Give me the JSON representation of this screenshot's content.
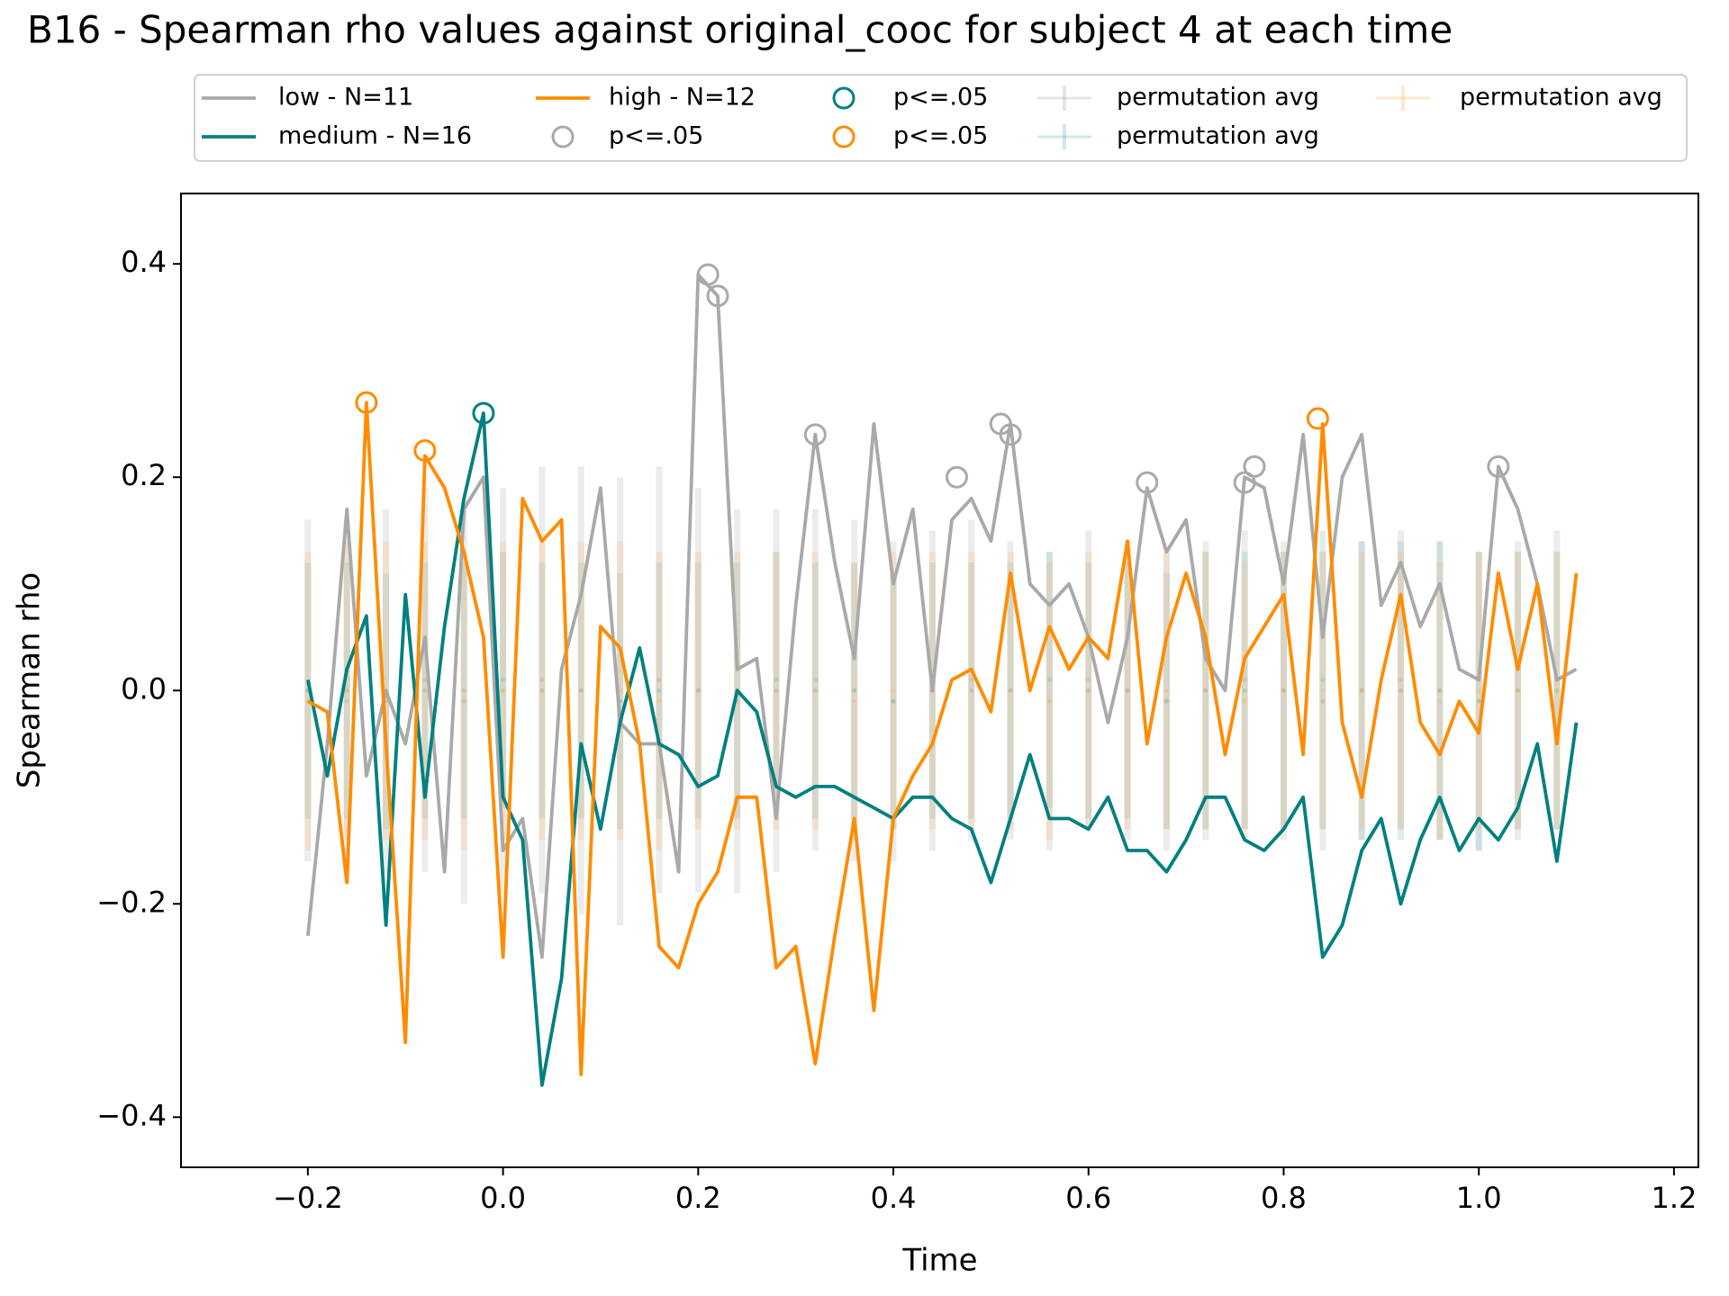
{
  "chart_data": {
    "type": "line",
    "title": "B16 - Spearman rho values against original_cooc for subject 4 at each time",
    "x_label": "Time",
    "y_label": "Spearman rho",
    "xlim": [
      -0.33,
      1.225
    ],
    "ylim": [
      -0.447,
      0.466
    ],
    "xticks": [
      {
        "value": -0.2,
        "label": "−0.2"
      },
      {
        "value": 0.0,
        "label": "0.0"
      },
      {
        "value": 0.2,
        "label": "0.2"
      },
      {
        "value": 0.4,
        "label": "0.4"
      },
      {
        "value": 0.6,
        "label": "0.6"
      },
      {
        "value": 0.8,
        "label": "0.8"
      },
      {
        "value": 1.0,
        "label": "1.0"
      },
      {
        "value": 1.2,
        "label": "1.2"
      }
    ],
    "yticks": [
      {
        "value": -0.4,
        "label": "−0.4"
      },
      {
        "value": -0.2,
        "label": "−0.2"
      },
      {
        "value": 0.0,
        "label": "0.0"
      },
      {
        "value": 0.2,
        "label": "0.2"
      },
      {
        "value": 0.4,
        "label": "0.4"
      }
    ],
    "x": [
      -0.2,
      -0.18,
      -0.16,
      -0.14,
      -0.12,
      -0.1,
      -0.08,
      -0.06,
      -0.04,
      -0.02,
      0,
      0.02,
      0.04,
      0.06,
      0.08,
      0.1,
      0.12,
      0.14,
      0.16,
      0.18,
      0.2,
      0.22,
      0.24,
      0.26,
      0.28,
      0.3,
      0.32,
      0.34,
      0.36,
      0.38,
      0.4,
      0.42,
      0.44,
      0.46,
      0.48,
      0.5,
      0.52,
      0.54,
      0.56,
      0.58,
      0.6,
      0.62,
      0.64,
      0.66,
      0.68,
      0.7,
      0.72,
      0.74,
      0.76,
      0.78,
      0.8,
      0.82,
      0.84,
      0.86,
      0.88,
      0.9,
      0.92,
      0.94,
      0.96,
      0.98,
      1.0,
      1.02,
      1.04,
      1.06,
      1.08,
      1.1
    ],
    "series": [
      {
        "name": "low - N=11",
        "color": "#a9a9a9",
        "values": [
          -0.23,
          -0.05,
          0.17,
          -0.08,
          0.0,
          -0.05,
          0.05,
          -0.17,
          0.17,
          0.2,
          -0.15,
          -0.12,
          -0.25,
          0.02,
          0.09,
          0.19,
          -0.03,
          -0.05,
          -0.05,
          -0.17,
          0.39,
          0.37,
          0.02,
          0.03,
          -0.12,
          0.08,
          0.24,
          0.12,
          0.03,
          0.25,
          0.1,
          0.17,
          0.0,
          0.16,
          0.18,
          0.14,
          0.25,
          0.1,
          0.08,
          0.1,
          0.05,
          -0.03,
          0.05,
          0.19,
          0.13,
          0.16,
          0.03,
          0.0,
          0.2,
          0.19,
          0.1,
          0.24,
          0.05,
          0.2,
          0.24,
          0.08,
          0.12,
          0.06,
          0.1,
          0.02,
          0.01,
          0.21,
          0.17,
          0.1,
          0.01,
          0.02
        ]
      },
      {
        "name": "medium - N=16",
        "color": "#008080",
        "values": [
          0.01,
          -0.08,
          0.02,
          0.07,
          -0.22,
          0.09,
          -0.1,
          0.06,
          0.18,
          0.26,
          -0.1,
          -0.14,
          -0.37,
          -0.27,
          -0.05,
          -0.13,
          -0.03,
          0.04,
          -0.05,
          -0.06,
          -0.09,
          -0.08,
          0.0,
          -0.02,
          -0.09,
          -0.1,
          -0.09,
          -0.09,
          -0.1,
          -0.11,
          -0.12,
          -0.1,
          -0.1,
          -0.12,
          -0.13,
          -0.18,
          -0.12,
          -0.06,
          -0.12,
          -0.12,
          -0.13,
          -0.1,
          -0.15,
          -0.15,
          -0.17,
          -0.14,
          -0.1,
          -0.1,
          -0.14,
          -0.15,
          -0.13,
          -0.1,
          -0.25,
          -0.22,
          -0.15,
          -0.12,
          -0.2,
          -0.14,
          -0.1,
          -0.15,
          -0.12,
          -0.14,
          -0.11,
          -0.05,
          -0.16,
          -0.03
        ]
      },
      {
        "name": "high - N=12",
        "color": "#ff8c00",
        "values": [
          -0.01,
          -0.02,
          -0.18,
          0.27,
          -0.05,
          -0.33,
          0.22,
          0.19,
          0.13,
          0.05,
          -0.25,
          0.18,
          0.14,
          0.16,
          -0.36,
          0.06,
          0.04,
          -0.05,
          -0.24,
          -0.26,
          -0.2,
          -0.17,
          -0.1,
          -0.1,
          -0.26,
          -0.24,
          -0.35,
          -0.23,
          -0.12,
          -0.3,
          -0.12,
          -0.08,
          -0.05,
          0.01,
          0.02,
          -0.02,
          0.11,
          0.0,
          0.06,
          0.02,
          0.05,
          0.03,
          0.14,
          -0.05,
          0.05,
          0.11,
          0.05,
          -0.06,
          0.03,
          0.06,
          0.09,
          -0.06,
          0.25,
          -0.03,
          -0.1,
          0.01,
          0.09,
          -0.03,
          -0.06,
          -0.01,
          -0.04,
          0.11,
          0.02,
          0.1,
          -0.05,
          0.11
        ]
      }
    ],
    "significance": [
      {
        "name": "p<=.05",
        "color": "#a9a9a9",
        "x": [
          0.21,
          0.22,
          0.32,
          0.465,
          0.51,
          0.52,
          0.66,
          0.76,
          0.77,
          1.02
        ],
        "values": [
          0.39,
          0.37,
          0.24,
          0.2,
          0.25,
          0.24,
          0.195,
          0.195,
          0.21,
          0.21
        ]
      },
      {
        "name": "p<=.05",
        "color": "#008080",
        "x": [
          -0.02
        ],
        "values": [
          0.26
        ]
      },
      {
        "name": "p<=.05",
        "color": "#ff8c00",
        "x": [
          -0.14,
          -0.08,
          0.835
        ],
        "values": [
          0.27,
          0.225,
          0.255
        ]
      }
    ],
    "permutation_x": [
      -0.2,
      -0.16,
      -0.12,
      -0.08,
      -0.04,
      0,
      0.04,
      0.08,
      0.12,
      0.16,
      0.2,
      0.24,
      0.28,
      0.32,
      0.36,
      0.4,
      0.44,
      0.48,
      0.52,
      0.56,
      0.6,
      0.64,
      0.68,
      0.72,
      0.76,
      0.8,
      0.84,
      0.88,
      0.92,
      0.96,
      1.0,
      1.04,
      1.08
    ],
    "permutation": [
      {
        "name": "permutation avg",
        "color": "#a9a9a9",
        "values": [
          0.0,
          -0.01,
          0.0,
          0.01,
          -0.01,
          0.0,
          0.01,
          0.0,
          -0.01,
          0.01,
          0.0,
          -0.01,
          0.0,
          0.01,
          0.0,
          -0.01,
          0.0,
          0.01,
          0.0,
          -0.01,
          0.01,
          0.0,
          -0.01,
          0.0,
          0.01,
          0.0,
          -0.01,
          0.0,
          0.01,
          0.0,
          -0.01,
          0.0,
          0.01
        ],
        "errors": [
          0.16,
          0.17,
          0.17,
          0.18,
          0.19,
          0.19,
          0.2,
          0.21,
          0.21,
          0.2,
          0.19,
          0.18,
          0.17,
          0.16,
          0.16,
          0.15,
          0.15,
          0.15,
          0.14,
          0.14,
          0.14,
          0.14,
          0.14,
          0.14,
          0.14,
          0.14,
          0.14,
          0.14,
          0.14,
          0.14,
          0.14,
          0.14,
          0.14
        ]
      },
      {
        "name": "permutation avg",
        "color": "#5fb3b3",
        "values": [
          0.0,
          0.0,
          -0.01,
          0.0,
          0.0,
          0.01,
          0.0,
          0.0,
          -0.01,
          0.0,
          0.0,
          0.0,
          0.01,
          0.0,
          0.0,
          -0.01,
          0.0,
          0.0,
          0.0,
          0.01,
          0.0,
          0.0,
          -0.01,
          0.0,
          0.0,
          0.0,
          0.01,
          0.0,
          0.0,
          0.0,
          -0.01,
          0.0,
          0.0
        ],
        "errors": [
          0.12,
          0.12,
          0.12,
          0.12,
          0.12,
          0.12,
          0.12,
          0.12,
          0.12,
          0.12,
          0.12,
          0.12,
          0.12,
          0.12,
          0.12,
          0.12,
          0.12,
          0.12,
          0.12,
          0.12,
          0.12,
          0.12,
          0.12,
          0.13,
          0.13,
          0.13,
          0.14,
          0.14,
          0.14,
          0.14,
          0.14,
          0.13,
          0.13
        ]
      },
      {
        "name": "permutation avg",
        "color": "#ffb266",
        "values": [
          -0.01,
          0.0,
          0.0,
          0.0,
          -0.01,
          0.0,
          0.0,
          0.0,
          0.0,
          -0.01,
          0.0,
          0.0,
          0.0,
          0.0,
          -0.01,
          0.0,
          0.0,
          0.0,
          0.0,
          -0.01,
          0.0,
          0.0,
          0.0,
          0.0,
          -0.01,
          0.0,
          0.0,
          0.0,
          0.0,
          -0.01,
          0.0,
          0.0,
          0.0
        ],
        "errors": [
          0.14,
          0.14,
          0.14,
          0.14,
          0.14,
          0.14,
          0.14,
          0.14,
          0.14,
          0.14,
          0.13,
          0.13,
          0.13,
          0.13,
          0.13,
          0.13,
          0.13,
          0.13,
          0.13,
          0.13,
          0.13,
          0.13,
          0.13,
          0.13,
          0.13,
          0.13,
          0.13,
          0.13,
          0.13,
          0.13,
          0.13,
          0.13,
          0.13
        ]
      }
    ]
  }
}
